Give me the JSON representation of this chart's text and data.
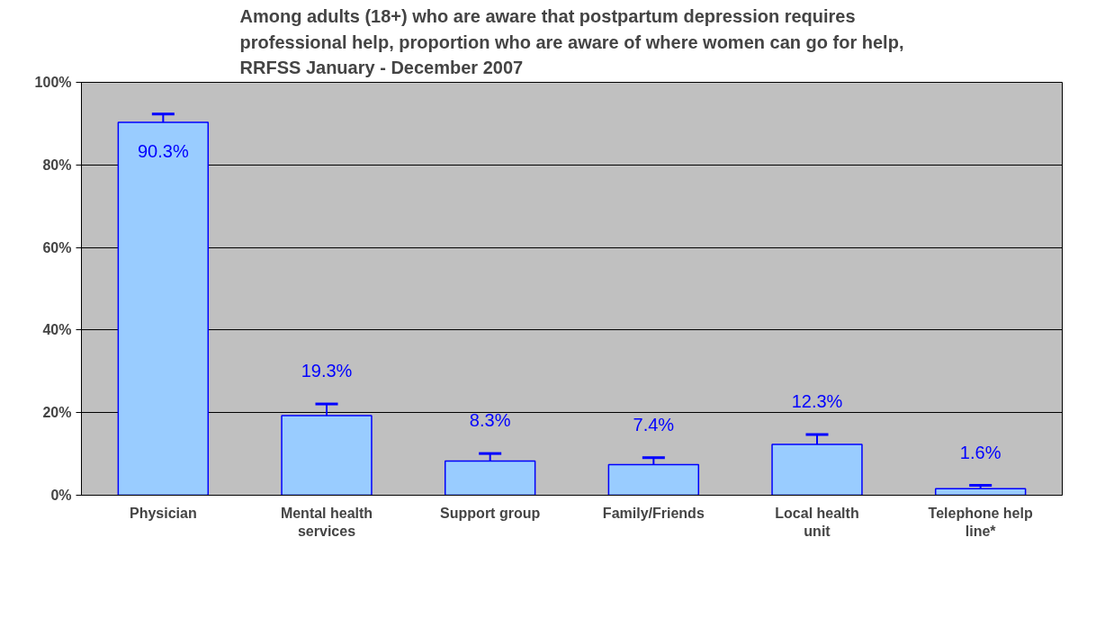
{
  "chart_data": {
    "type": "bar",
    "title": "Among adults (18+) who are aware that postpartum depression requires professional help, proportion who are aware of where women can go for help, RRFSS January - December 2007",
    "categories": [
      "Physician",
      "Mental health services",
      "Support group",
      "Family/Friends",
      "Local health unit",
      "Telephone help line*"
    ],
    "values": [
      90.3,
      19.3,
      8.3,
      7.4,
      12.3,
      1.6
    ],
    "errors": [
      2.0,
      2.8,
      1.8,
      1.7,
      2.4,
      0.8
    ],
    "value_labels": [
      "90.3%",
      "19.3%",
      "8.3%",
      "7.4%",
      "12.3%",
      "1.6%"
    ],
    "color": "#99ccff",
    "ylim": [
      0,
      100
    ],
    "yticks": [
      {
        "value": 0,
        "label": "0%"
      },
      {
        "value": 20,
        "label": "20%"
      },
      {
        "value": 40,
        "label": "40%"
      },
      {
        "value": 60,
        "label": "60%"
      },
      {
        "value": 80,
        "label": "80%"
      },
      {
        "value": 100,
        "label": "100%"
      }
    ],
    "grid": "y"
  }
}
